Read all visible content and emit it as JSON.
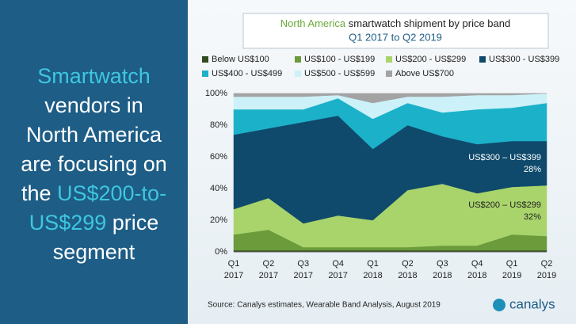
{
  "left_panel": {
    "lines": [
      [
        {
          "text": "Smartwatch",
          "accent": true
        }
      ],
      [
        {
          "text": "vendors in",
          "accent": false
        }
      ],
      [
        {
          "text": "North America",
          "accent": false
        }
      ],
      [
        {
          "text": "are focusing on",
          "accent": false
        }
      ],
      [
        {
          "text": "the ",
          "accent": false
        },
        {
          "text": "US$200-to-",
          "accent": true
        }
      ],
      [
        {
          "text": "US$299",
          "accent": true
        },
        {
          "text": " price",
          "accent": false
        }
      ],
      [
        {
          "text": "segment",
          "accent": false
        }
      ]
    ]
  },
  "chart_data": {
    "type": "stacked-area",
    "title": [
      "North America",
      " smartwatch shipment by price band"
    ],
    "subtitle": "Q1 2017 to Q2 2019",
    "source": "Source:  Canalys estimates, Wearable Band Analysis, August 2019",
    "brand": "canalys",
    "categories": [
      [
        "Q1",
        "2017"
      ],
      [
        "Q2",
        "2017"
      ],
      [
        "Q3",
        "2017"
      ],
      [
        "Q4",
        "2017"
      ],
      [
        "Q1",
        "2018"
      ],
      [
        "Q2",
        "2018"
      ],
      [
        "Q3",
        "2018"
      ],
      [
        "Q4",
        "2018"
      ],
      [
        "Q1",
        "2019"
      ],
      [
        "Q2",
        "2019"
      ]
    ],
    "series": [
      {
        "name": "Below US$100",
        "color": "#2f4b1f",
        "values": [
          1,
          1,
          1,
          1,
          1,
          1,
          1,
          1,
          1,
          1
        ]
      },
      {
        "name": "US$100 - US$199",
        "color": "#6b9b3b",
        "values": [
          10,
          13,
          2,
          2,
          2,
          2,
          3,
          3,
          10,
          9
        ]
      },
      {
        "name": "US$200 - US$299",
        "color": "#a9d46b",
        "values": [
          16,
          20,
          15,
          20,
          17,
          36,
          39,
          33,
          30,
          32
        ]
      },
      {
        "name": "US$300 - US$399",
        "color": "#0f4a6c",
        "values": [
          47,
          44,
          64,
          63,
          45,
          41,
          30,
          31,
          29,
          28
        ]
      },
      {
        "name": "US$400 - US$499",
        "color": "#1bb1c9",
        "values": [
          16,
          12,
          8,
          11,
          19,
          14,
          15,
          22,
          21,
          24
        ]
      },
      {
        "name": "US$500 - US$599",
        "color": "#cdf1f8",
        "values": [
          8,
          8,
          8,
          2,
          10,
          4,
          10,
          9,
          8,
          6
        ]
      },
      {
        "name": "Above US$700",
        "color": "#a3a3a3",
        "values": [
          2,
          2,
          2,
          1,
          6,
          2,
          2,
          1,
          1,
          0
        ]
      }
    ],
    "ylim": [
      0,
      100
    ],
    "yticks": [
      {
        "value": 0,
        "label": "0%"
      },
      {
        "value": 20,
        "label": "20%"
      },
      {
        "value": 40,
        "label": "40%"
      },
      {
        "value": 60,
        "label": "60%"
      },
      {
        "value": 80,
        "label": "80%"
      },
      {
        "value": 100,
        "label": "100%"
      }
    ],
    "grid": true,
    "annotations": [
      {
        "lines": [
          "US$300 – US$399",
          "28%"
        ],
        "series": 3,
        "category": 9
      },
      {
        "lines": [
          "US$200 – US$299",
          "32%"
        ],
        "series": 2,
        "category": 9
      }
    ]
  }
}
